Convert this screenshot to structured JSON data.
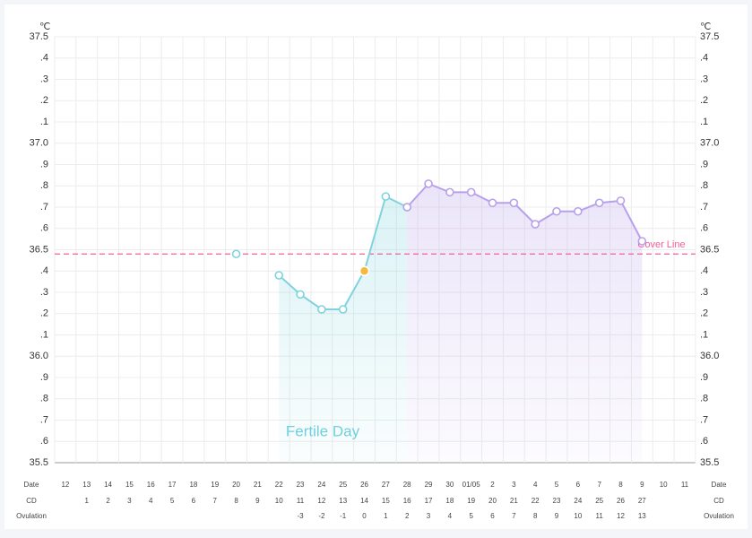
{
  "chart_data": {
    "type": "line",
    "unit": "℃",
    "categories": [
      "12",
      "13",
      "14",
      "15",
      "16",
      "17",
      "18",
      "19",
      "20",
      "21",
      "22",
      "23",
      "24",
      "25",
      "26",
      "27",
      "28",
      "29",
      "30",
      "01/05",
      "2",
      "3",
      "4",
      "5",
      "6",
      "7",
      "8",
      "9",
      "10",
      "11"
    ],
    "row_labels": [
      "Date",
      "CD",
      "Ovulation"
    ],
    "cd": [
      null,
      1,
      2,
      3,
      4,
      5,
      6,
      7,
      8,
      9,
      10,
      11,
      12,
      13,
      14,
      15,
      16,
      17,
      18,
      19,
      20,
      21,
      22,
      23,
      24,
      25,
      26,
      27,
      null,
      null
    ],
    "ovulation": [
      null,
      null,
      null,
      null,
      null,
      null,
      null,
      null,
      null,
      null,
      null,
      -3,
      -2,
      -1,
      0,
      1,
      2,
      3,
      4,
      5,
      6,
      7,
      8,
      9,
      10,
      11,
      12,
      13,
      null,
      null
    ],
    "series": [
      {
        "color": "#7fd3de",
        "values": [
          null,
          null,
          null,
          null,
          null,
          null,
          null,
          null,
          36.48,
          null,
          36.38,
          36.29,
          36.22,
          36.22,
          36.4,
          36.75,
          36.7,
          null,
          null,
          null,
          null,
          null,
          null,
          null,
          null,
          null,
          null,
          null,
          null,
          null
        ]
      },
      {
        "color": "#b8a0ea",
        "values": [
          null,
          null,
          null,
          null,
          null,
          null,
          null,
          null,
          null,
          null,
          null,
          null,
          null,
          null,
          null,
          null,
          36.7,
          36.81,
          36.77,
          36.77,
          36.72,
          36.72,
          36.62,
          36.68,
          36.68,
          36.72,
          36.73,
          36.54,
          null,
          null
        ]
      }
    ],
    "ovulation_marker_color": "#f6b93b",
    "cover_line": {
      "value": 36.48,
      "label": "Cover Line",
      "color": "#f0609a"
    },
    "annotation": "Fertile Day",
    "ylim": [
      35.5,
      37.5
    ],
    "yticks": [
      35.5,
      {
        "value": 35.6,
        "label": ".6"
      },
      {
        "value": 35.7,
        "label": ".7"
      },
      {
        "value": 35.8,
        "label": ".8"
      },
      {
        "value": 35.9,
        "label": ".9"
      },
      {
        "value": 36.0,
        "label": "36.0"
      },
      {
        "value": 36.1,
        "label": ".1"
      },
      {
        "value": 36.2,
        "label": ".2"
      },
      {
        "value": 36.3,
        "label": ".3"
      },
      {
        "value": 36.4,
        "label": ".4"
      },
      36.5,
      {
        "value": 36.6,
        "label": ".6"
      },
      {
        "value": 36.7,
        "label": ".7"
      },
      {
        "value": 36.8,
        "label": ".8"
      },
      {
        "value": 36.9,
        "label": ".9"
      },
      {
        "value": 37.0,
        "label": "37.0"
      },
      {
        "value": 37.1,
        "label": ".1"
      },
      {
        "value": 37.2,
        "label": ".2"
      },
      {
        "value": 37.3,
        "label": ".3"
      },
      {
        "value": 37.4,
        "label": ".4"
      },
      37.5
    ],
    "grid": true
  }
}
